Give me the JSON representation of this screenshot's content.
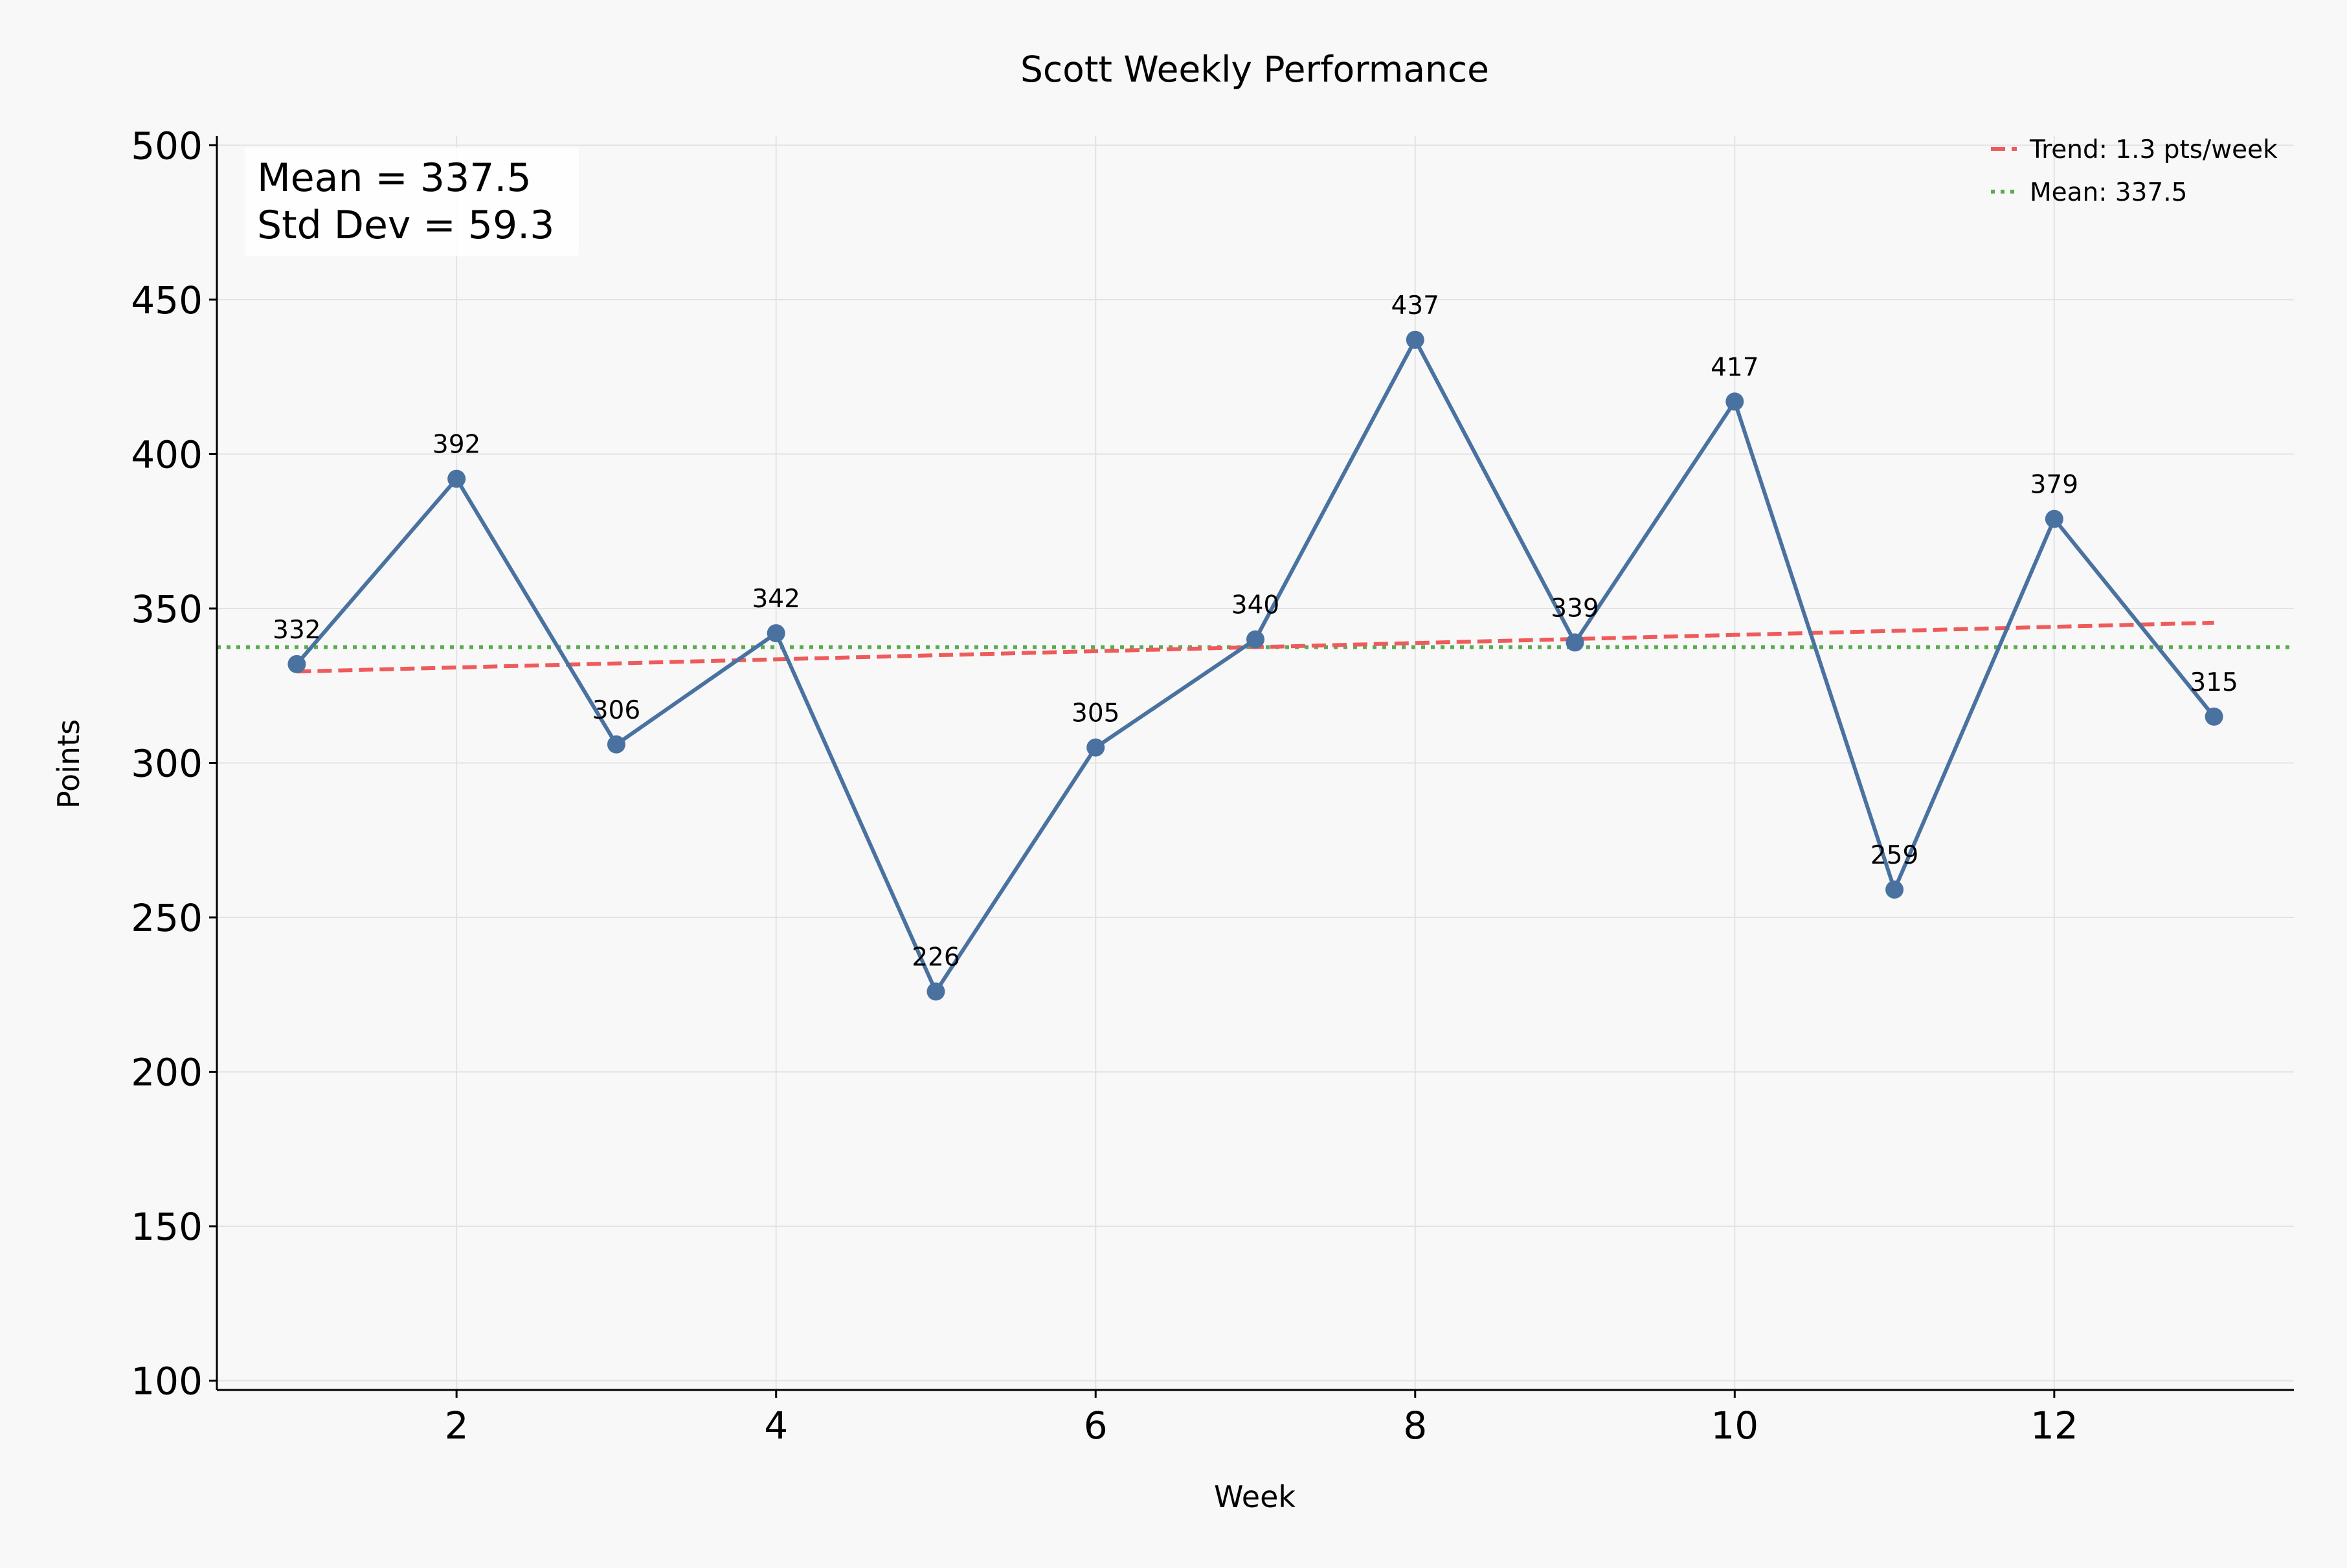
{
  "colors": {
    "background": "#f8f8f8",
    "series": "#4a72a0",
    "trend": "#ef5a5a",
    "mean": "#5aaa50",
    "grid": "#e3e3e3",
    "axis": "#000000"
  },
  "chart_data": {
    "type": "line",
    "title": "Scott Weekly Performance",
    "xlabel": "Week",
    "ylabel": "Points",
    "xlim": [
      0.5,
      13.5
    ],
    "ylim": [
      97,
      503
    ],
    "xticks": [
      2,
      4,
      6,
      8,
      10,
      12
    ],
    "yticks": [
      100,
      150,
      200,
      250,
      300,
      350,
      400,
      450,
      500
    ],
    "grid": true,
    "legend_position": "top-right",
    "series": [
      {
        "x": [
          1,
          2,
          3,
          4,
          5,
          6,
          7,
          8,
          9,
          10,
          11,
          12,
          13
        ],
        "values": [
          332,
          392,
          306,
          342,
          226,
          305,
          340,
          437,
          339,
          417,
          259,
          379,
          315
        ]
      }
    ],
    "trend": {
      "name": "Trend: 1.3 pts/week",
      "x": [
        1,
        13
      ],
      "y": [
        329.6,
        345.4
      ]
    },
    "mean_line": {
      "name": "Mean: 337.5",
      "value": 337.5
    },
    "stats": {
      "mean": "Mean = 337.5",
      "std": "Std Dev = 59.3"
    }
  }
}
